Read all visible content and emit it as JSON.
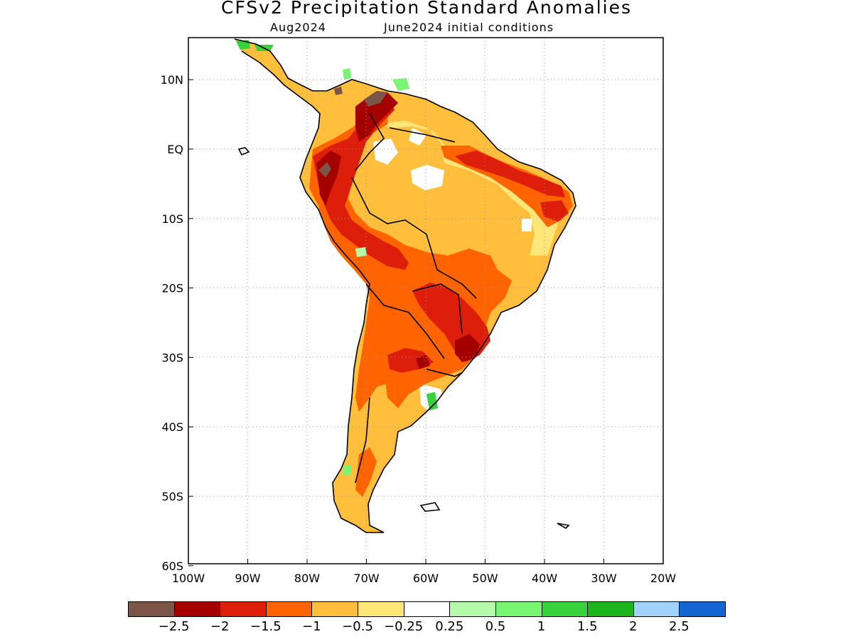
{
  "title": "CFSv2 Precipitation Standard Anomalies",
  "subtitle_left": "Aug2024",
  "subtitle_right": "June2024 initial conditions",
  "lat_ticks": [
    {
      "label": "10N",
      "lat": 10
    },
    {
      "label": "EQ",
      "lat": 0
    },
    {
      "label": "10S",
      "lat": -10
    },
    {
      "label": "20S",
      "lat": -20
    },
    {
      "label": "30S",
      "lat": -30
    },
    {
      "label": "40S",
      "lat": -40
    },
    {
      "label": "50S",
      "lat": -50
    },
    {
      "label": "60S",
      "lat": -60
    }
  ],
  "lon_ticks": [
    {
      "label": "100W",
      "lon": -100
    },
    {
      "label": "90W",
      "lon": -90
    },
    {
      "label": "80W",
      "lon": -80
    },
    {
      "label": "70W",
      "lon": -70
    },
    {
      "label": "60W",
      "lon": -60
    },
    {
      "label": "50W",
      "lon": -50
    },
    {
      "label": "40W",
      "lon": -40
    },
    {
      "label": "30W",
      "lon": -30
    },
    {
      "label": "20W",
      "lon": -20
    }
  ],
  "legend": {
    "colors": [
      "#7a5548",
      "#a50000",
      "#dc1e0a",
      "#ff6400",
      "#ffbe3c",
      "#ffe678",
      "#ffffff",
      "#b4faaa",
      "#78f573",
      "#37d23c",
      "#1eb41e",
      "#a0d2fa",
      "#1464d2"
    ],
    "tick_labels": [
      "−2.5",
      "−2",
      "−1.5",
      "−1",
      "−0.5",
      "−0.25",
      "0.25",
      "0.5",
      "1",
      "1.5",
      "2",
      "2.5"
    ]
  },
  "grid": "dotted",
  "projection": "lat-lon",
  "colors": {
    "land_base": "#ffbe3c",
    "coast": "#000000"
  }
}
